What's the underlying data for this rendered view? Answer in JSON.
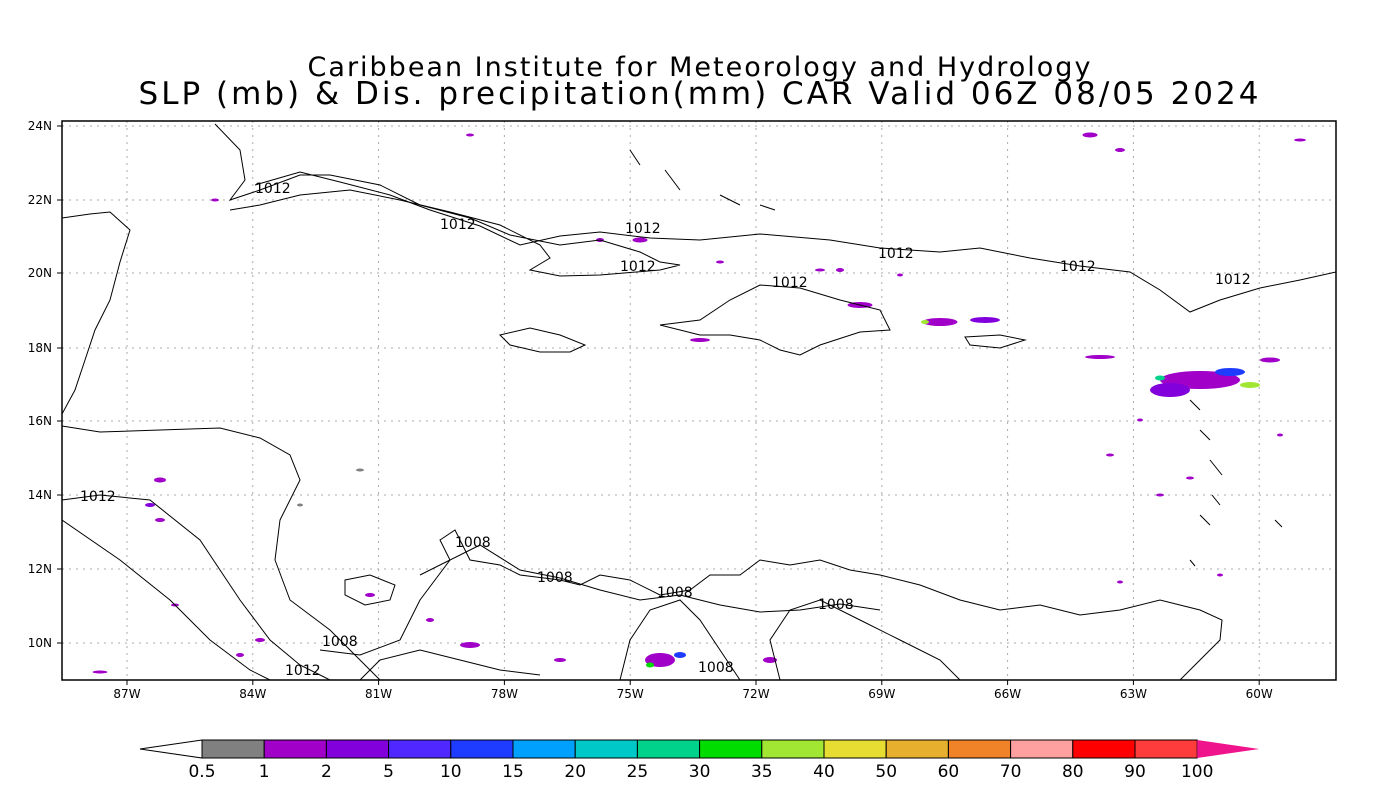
{
  "title": {
    "line1": "Caribbean Institute for Meteorology and Hydrology",
    "line2": "SLP (mb) & Dis. precipitation(mm) CAR Valid 06Z 08/05 2024"
  },
  "axes": {
    "lat_labels": [
      "24N",
      "22N",
      "20N",
      "18N",
      "16N",
      "14N",
      "12N",
      "10N"
    ],
    "lon_labels": [
      "87W",
      "84W",
      "81W",
      "78W",
      "75W",
      "72W",
      "69W",
      "66W",
      "63W",
      "60W"
    ]
  },
  "contour_labels": [
    {
      "text": "1012"
    },
    {
      "text": "1012"
    },
    {
      "text": "1012"
    },
    {
      "text": "1012"
    },
    {
      "text": "1012"
    },
    {
      "text": "1012"
    },
    {
      "text": "1012"
    },
    {
      "text": "1012"
    },
    {
      "text": "1012"
    },
    {
      "text": "1012"
    },
    {
      "text": "1008"
    },
    {
      "text": "1008"
    },
    {
      "text": "1008"
    },
    {
      "text": "1008"
    },
    {
      "text": "1008"
    },
    {
      "text": "1008"
    }
  ],
  "colorbar": {
    "labels": [
      "0.5",
      "1",
      "2",
      "5",
      "10",
      "15",
      "20",
      "25",
      "30",
      "35",
      "40",
      "50",
      "60",
      "70",
      "80",
      "90",
      "100"
    ],
    "colors": [
      "#808080",
      "#a000c8",
      "#8200dc",
      "#5028ff",
      "#1e3cff",
      "#00a0ff",
      "#00c8c8",
      "#00d28c",
      "#00dc00",
      "#a0e632",
      "#e6dc32",
      "#e6af2d",
      "#f08228",
      "#ffa0a0",
      "#ff0000",
      "#ff3c3c"
    ],
    "over_color": "#f0148c",
    "under_color": "#ffffff"
  }
}
